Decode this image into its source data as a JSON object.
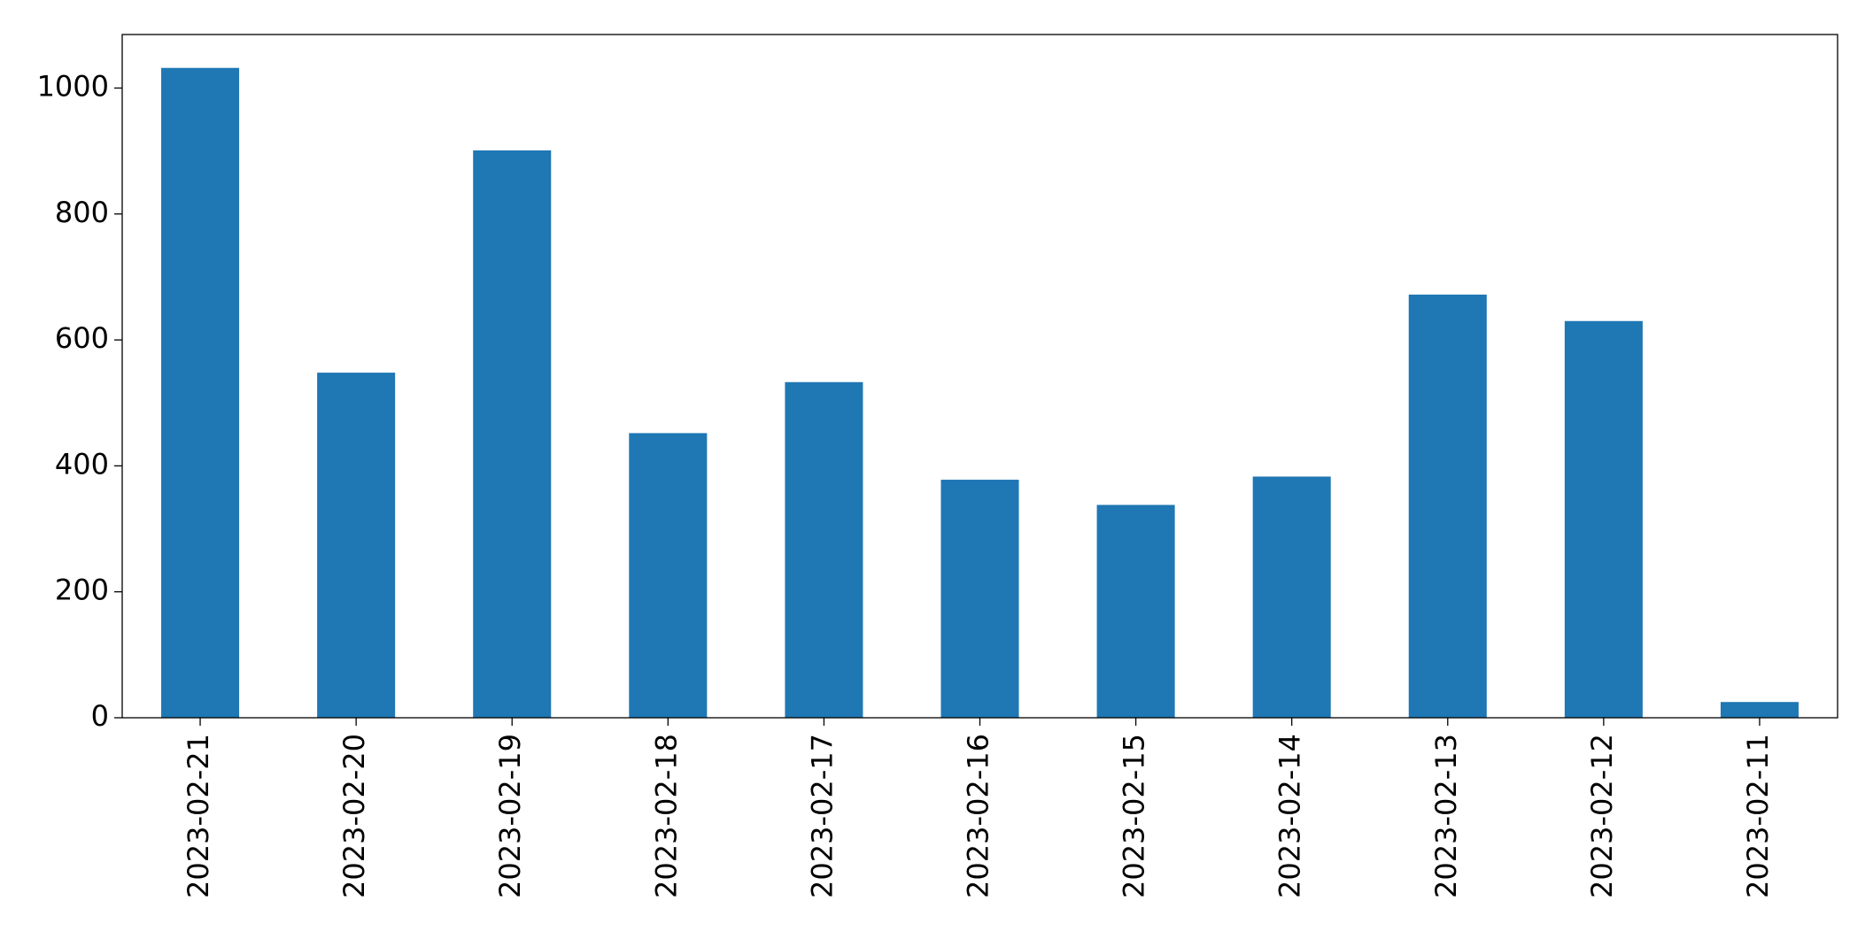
{
  "chart_data": {
    "type": "bar",
    "categories": [
      "2023-02-21",
      "2023-02-20",
      "2023-02-19",
      "2023-02-18",
      "2023-02-17",
      "2023-02-16",
      "2023-02-15",
      "2023-02-14",
      "2023-02-13",
      "2023-02-12",
      "2023-02-11"
    ],
    "values": [
      1032,
      548,
      901,
      452,
      533,
      378,
      338,
      383,
      672,
      630,
      25
    ],
    "color": "#1f77b4",
    "ylim": [
      0,
      1085
    ],
    "yticks": [
      0,
      200,
      400,
      600,
      800,
      1000
    ],
    "grid": false
  }
}
